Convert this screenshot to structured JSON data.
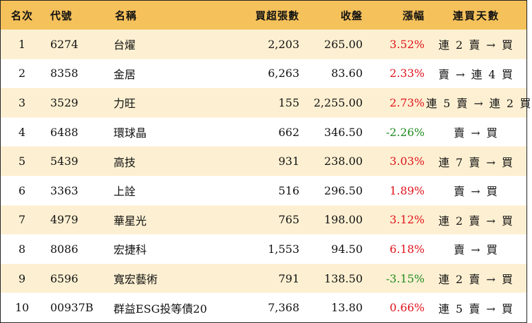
{
  "colors": {
    "header_bg": "#f5c15b",
    "row_odd_bg": "#fdf0d2",
    "row_even_bg": "#ffffff",
    "positive": "#e0121b",
    "negative": "#1f8a1f"
  },
  "headers": {
    "rank": "名次",
    "code": "代號",
    "name": "名稱",
    "net_buy": "買超張數",
    "close": "收盤",
    "change": "漲幅",
    "days": "連買天數"
  },
  "rows": [
    {
      "rank": "1",
      "code": "6274",
      "name": "台燿",
      "net_buy": "2,203",
      "close": "265.00",
      "change": "3.52%",
      "direction": "up",
      "days": "連 2 賣 → 買"
    },
    {
      "rank": "2",
      "code": "8358",
      "name": "金居",
      "net_buy": "6,263",
      "close": "83.60",
      "change": "2.33%",
      "direction": "up",
      "days": "賣 → 連 4 買"
    },
    {
      "rank": "3",
      "code": "3529",
      "name": "力旺",
      "net_buy": "155",
      "close": "2,255.00",
      "change": "2.73%",
      "direction": "up",
      "days": "連 5 賣 → 連 2 買"
    },
    {
      "rank": "4",
      "code": "6488",
      "name": "環球晶",
      "net_buy": "662",
      "close": "346.50",
      "change": "-2.26%",
      "direction": "down",
      "days": "賣 → 買"
    },
    {
      "rank": "5",
      "code": "5439",
      "name": "高技",
      "net_buy": "931",
      "close": "238.00",
      "change": "3.03%",
      "direction": "up",
      "days": "連 7 賣 → 買"
    },
    {
      "rank": "6",
      "code": "3363",
      "name": "上詮",
      "net_buy": "516",
      "close": "296.50",
      "change": "1.89%",
      "direction": "up",
      "days": "賣 → 買"
    },
    {
      "rank": "7",
      "code": "4979",
      "name": "華星光",
      "net_buy": "765",
      "close": "198.00",
      "change": "3.12%",
      "direction": "up",
      "days": "連 2 賣 → 買"
    },
    {
      "rank": "8",
      "code": "8086",
      "name": "宏捷科",
      "net_buy": "1,553",
      "close": "94.50",
      "change": "6.18%",
      "direction": "up",
      "days": "賣 → 買"
    },
    {
      "rank": "9",
      "code": "6596",
      "name": "寬宏藝術",
      "net_buy": "791",
      "close": "138.50",
      "change": "-3.15%",
      "direction": "down",
      "days": "連 2 賣 → 買"
    },
    {
      "rank": "10",
      "code": "00937B",
      "name": "群益ESG投等債20",
      "net_buy": "7,368",
      "close": "13.80",
      "change": "0.66%",
      "direction": "up",
      "days": "連 5 賣 → 買"
    }
  ]
}
